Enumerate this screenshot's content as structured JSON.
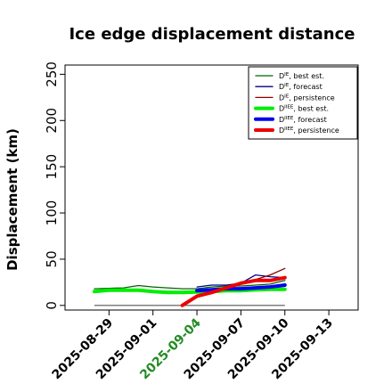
{
  "chart_data": {
    "type": "line",
    "title": "Ice edge displacement distance",
    "ylabel": "Displacement (km)",
    "xlabel": "",
    "ylim": [
      -5,
      260
    ],
    "yticks": [
      0,
      50,
      100,
      150,
      200,
      250
    ],
    "xlim": [
      "2025-08-26",
      "2025-09-15"
    ],
    "xticks": [
      {
        "label": "2025-08-29",
        "date": "2025-08-29",
        "color": "#000000"
      },
      {
        "label": "2025-09-01",
        "date": "2025-09-01",
        "color": "#000000"
      },
      {
        "label": "2025-09-04",
        "date": "2025-09-04",
        "color": "#228B22"
      },
      {
        "label": "2025-09-07",
        "date": "2025-09-07",
        "color": "#000000"
      },
      {
        "label": "2025-09-10",
        "date": "2025-09-10",
        "color": "#000000"
      },
      {
        "label": "2025-09-13",
        "date": "2025-09-13",
        "color": "#000000"
      }
    ],
    "legend_position": "top-right",
    "reference_line": {
      "y": 0,
      "from": "2025-08-28",
      "to": "2025-09-10",
      "color": "#555555"
    },
    "series": [
      {
        "name": "D^IE, best est.",
        "sup": "IE",
        "base": "D",
        "suffix": ", best est.",
        "color": "#006400",
        "width": 1.3,
        "x": [
          "2025-08-28",
          "2025-08-29",
          "2025-08-30",
          "2025-08-31",
          "2025-09-01",
          "2025-09-02",
          "2025-09-03",
          "2025-09-04",
          "2025-09-05",
          "2025-09-06",
          "2025-09-07",
          "2025-09-08",
          "2025-09-09",
          "2025-09-10"
        ],
        "y": [
          18,
          18.5,
          19,
          21.5,
          20,
          19,
          18,
          18,
          20,
          21,
          21,
          22,
          23,
          27
        ]
      },
      {
        "name": "D^IE, forecast",
        "sup": "IE",
        "base": "D",
        "suffix": ", forecast",
        "color": "#00008B",
        "width": 1.3,
        "x": [
          "2025-09-04",
          "2025-09-05",
          "2025-09-06",
          "2025-09-07",
          "2025-09-08",
          "2025-09-09",
          "2025-09-10"
        ],
        "y": [
          20,
          22,
          22,
          24,
          33,
          31,
          30
        ]
      },
      {
        "name": "D^IE, persistence",
        "sup": "IE",
        "base": "D",
        "suffix": ", persistence",
        "color": "#8B0000",
        "width": 1.3,
        "x": [
          "2025-09-04",
          "2025-09-05",
          "2025-09-06",
          "2025-09-07",
          "2025-09-08",
          "2025-09-09",
          "2025-09-10"
        ],
        "y": [
          16,
          17,
          20,
          24,
          28,
          33,
          40
        ]
      },
      {
        "name": "D^IIEE, best est.",
        "sup": "IIEE",
        "base": "D",
        "suffix": ", best est.",
        "color": "#00EE00",
        "width": 4,
        "x": [
          "2025-08-28",
          "2025-08-29",
          "2025-08-30",
          "2025-08-31",
          "2025-09-01",
          "2025-09-02",
          "2025-09-03",
          "2025-09-04",
          "2025-09-05",
          "2025-09-06",
          "2025-09-07",
          "2025-09-08",
          "2025-09-09",
          "2025-09-10"
        ],
        "y": [
          15,
          16.5,
          16.5,
          16.5,
          15,
          14,
          14,
          14.5,
          15,
          16,
          16,
          17,
          17.5,
          17.5
        ]
      },
      {
        "name": "D^IIEE, forecast",
        "sup": "IIEE",
        "base": "D",
        "suffix": ", forecast",
        "color": "#0000EE",
        "width": 4,
        "x": [
          "2025-09-04",
          "2025-09-05",
          "2025-09-06",
          "2025-09-07",
          "2025-09-08",
          "2025-09-09",
          "2025-09-10"
        ],
        "y": [
          16,
          17,
          18,
          18,
          19,
          20,
          22
        ]
      },
      {
        "name": "D^IIEE, persistence",
        "sup": "IIEE",
        "base": "D",
        "suffix": ", persistence",
        "color": "#EE0000",
        "width": 4,
        "x": [
          "2025-09-03",
          "2025-09-04",
          "2025-09-05",
          "2025-09-06",
          "2025-09-07",
          "2025-09-08",
          "2025-09-09",
          "2025-09-10"
        ],
        "y": [
          0,
          10,
          14,
          19,
          24,
          27,
          27,
          30
        ]
      }
    ]
  }
}
